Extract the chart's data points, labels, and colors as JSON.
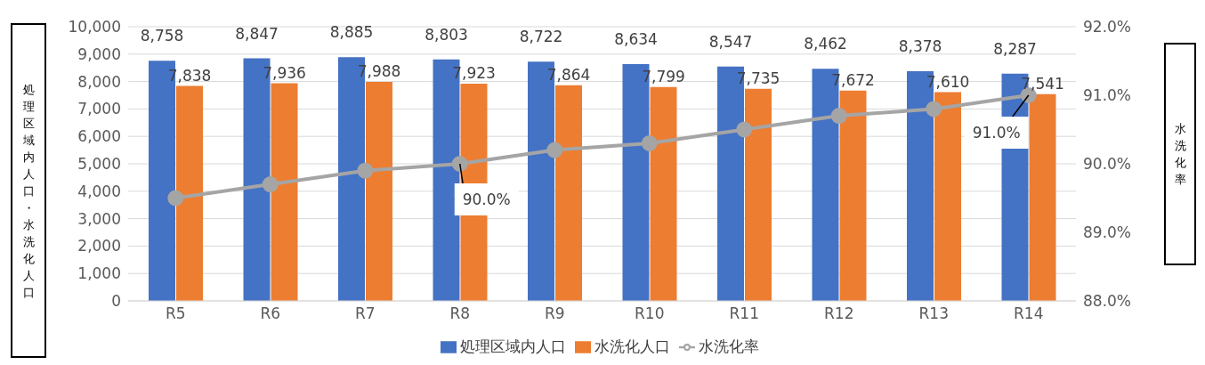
{
  "chart_data": {
    "type": "bar",
    "ylabel": "処理区域内人口・水洗化人口",
    "y2label": "水洗化率",
    "categories": [
      "R5",
      "R6",
      "R7",
      "R8",
      "R9",
      "R10",
      "R11",
      "R12",
      "R13",
      "R14"
    ],
    "series": [
      {
        "name": "処理区域内人口",
        "color": "#4472c4",
        "values": [
          8758,
          8847,
          8885,
          8803,
          8722,
          8634,
          8547,
          8462,
          8378,
          8287
        ],
        "value_labels": [
          "8,758",
          "8,847",
          "8,885",
          "8,803",
          "8,722",
          "8,634",
          "8,547",
          "8,462",
          "8,378",
          "8,287"
        ]
      },
      {
        "name": "水洗化人口",
        "color": "#ed7d31",
        "values": [
          7838,
          7936,
          7988,
          7923,
          7864,
          7799,
          7735,
          7672,
          7610,
          7541
        ],
        "value_labels": [
          "7,838",
          "7,936",
          "7,988",
          "7,923",
          "7,864",
          "7,799",
          "7,735",
          "7,672",
          "7,610",
          "7,541"
        ]
      },
      {
        "name": "水洗化率",
        "type": "line",
        "axis": "y2",
        "color": "#a5a5a5",
        "marker": "circle",
        "values": [
          89.5,
          89.7,
          89.9,
          90.0,
          90.2,
          90.3,
          90.5,
          90.7,
          90.8,
          91.0
        ],
        "value_labels": [
          null,
          null,
          null,
          "90.0%",
          null,
          null,
          null,
          null,
          null,
          "91.0%"
        ]
      }
    ],
    "ylim": [
      0,
      10000
    ],
    "yticks": [
      {
        "value": 0,
        "label": "0"
      },
      {
        "value": 1000,
        "label": "1,000"
      },
      {
        "value": 2000,
        "label": "2,000"
      },
      {
        "value": 3000,
        "label": "3,000"
      },
      {
        "value": 4000,
        "label": "4,000"
      },
      {
        "value": 5000,
        "label": "5,000"
      },
      {
        "value": 6000,
        "label": "6,000"
      },
      {
        "value": 7000,
        "label": "7,000"
      },
      {
        "value": 8000,
        "label": "8,000"
      },
      {
        "value": 9000,
        "label": "9,000"
      },
      {
        "value": 10000,
        "label": "10,000"
      }
    ],
    "y2lim": [
      88,
      92
    ],
    "y2ticks": [
      {
        "value": 88,
        "label": "88.0%"
      },
      {
        "value": 89,
        "label": "89.0%"
      },
      {
        "value": 90,
        "label": "90.0%"
      },
      {
        "value": 91,
        "label": "91.0%"
      },
      {
        "value": 92,
        "label": "92.0%"
      }
    ],
    "grid": "y",
    "legend": "bottom"
  }
}
